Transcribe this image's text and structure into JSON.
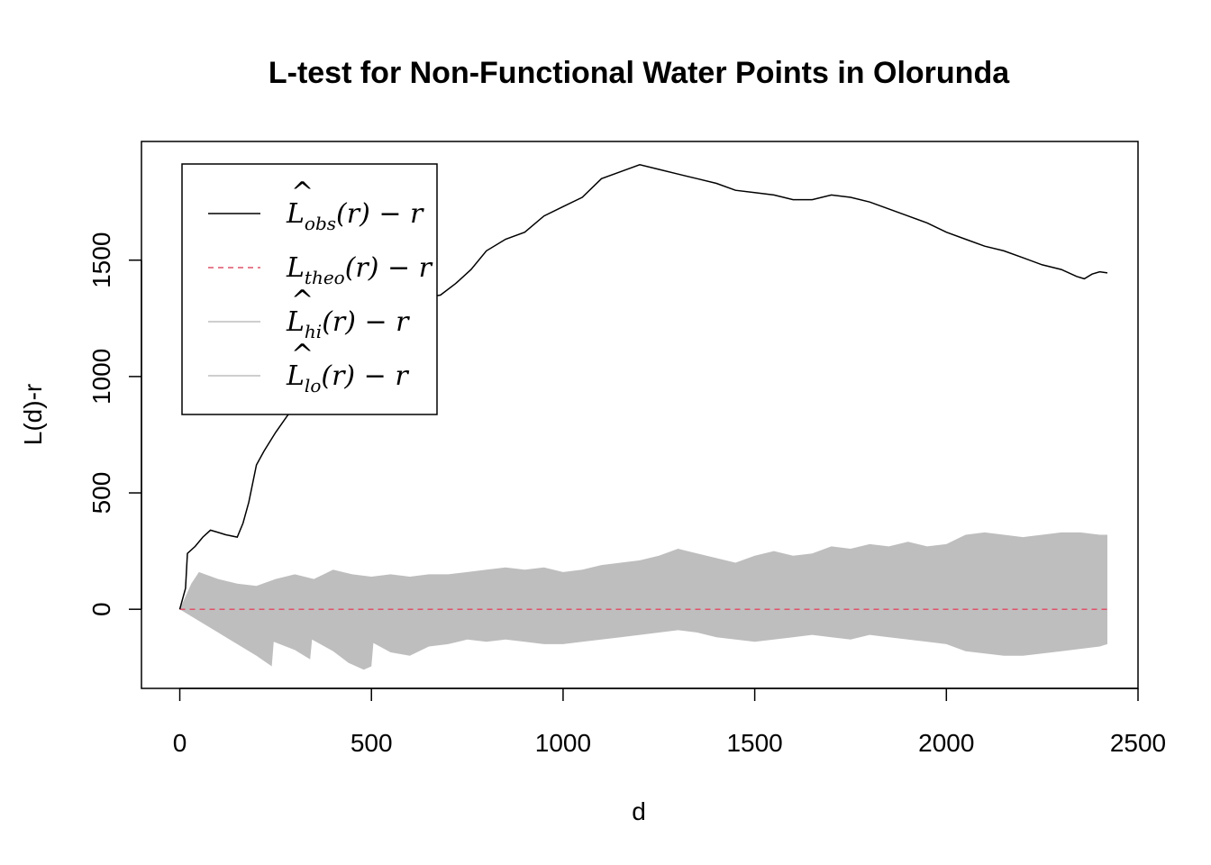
{
  "chart_data": {
    "type": "line",
    "title": "L-test for Non-Functional Water Points in Olorunda",
    "xlabel": "d",
    "ylabel": "L(d)-r",
    "xlim": [
      -100,
      2500
    ],
    "ylim": [
      -340,
      2010
    ],
    "xticks": [
      0,
      500,
      1000,
      1500,
      2000,
      2500
    ],
    "yticks": [
      0,
      500,
      1000,
      1500
    ],
    "grid": false,
    "legend_position": "top-left",
    "legend": [
      {
        "key": "obs",
        "main": "L",
        "hat": true,
        "sub": "obs",
        "tail": "(r) − r",
        "color": "#000000",
        "dash": "solid"
      },
      {
        "key": "theo",
        "main": "L",
        "hat": false,
        "sub": "theo",
        "tail": "(r) − r",
        "color": "#DF536B",
        "dash": "dashed"
      },
      {
        "key": "hi",
        "main": "L",
        "hat": true,
        "sub": "hi",
        "tail": "(r) − r",
        "color": "#BEBEBE",
        "dash": "solid"
      },
      {
        "key": "lo",
        "main": "L",
        "hat": true,
        "sub": "lo",
        "tail": "(r) − r",
        "color": "#BEBEBE",
        "dash": "solid"
      }
    ],
    "series": [
      {
        "name": "obs",
        "color": "#000000",
        "x": [
          0,
          15,
          20,
          40,
          60,
          80,
          100,
          120,
          150,
          165,
          180,
          200,
          220,
          250,
          280,
          300,
          330,
          360,
          390,
          420,
          450,
          480,
          500,
          530,
          560,
          600,
          640,
          680,
          720,
          760,
          800,
          850,
          900,
          950,
          1000,
          1050,
          1100,
          1150,
          1200,
          1250,
          1300,
          1350,
          1400,
          1450,
          1500,
          1550,
          1600,
          1650,
          1700,
          1750,
          1800,
          1850,
          1900,
          1950,
          2000,
          2050,
          2100,
          2150,
          2200,
          2250,
          2300,
          2340,
          2360,
          2380,
          2400,
          2420
        ],
        "y": [
          0,
          90,
          240,
          270,
          310,
          340,
          330,
          320,
          310,
          370,
          460,
          620,
          680,
          760,
          830,
          870,
          930,
          1000,
          1060,
          1100,
          1140,
          1180,
          1220,
          1250,
          1290,
          1320,
          1340,
          1350,
          1400,
          1460,
          1540,
          1590,
          1620,
          1690,
          1730,
          1770,
          1850,
          1880,
          1910,
          1890,
          1870,
          1850,
          1830,
          1800,
          1790,
          1780,
          1760,
          1760,
          1780,
          1770,
          1750,
          1720,
          1690,
          1660,
          1620,
          1590,
          1560,
          1540,
          1510,
          1480,
          1460,
          1430,
          1420,
          1440,
          1450,
          1445
        ]
      },
      {
        "name": "theo",
        "color": "#DF536B",
        "x": [
          0,
          2420
        ],
        "y": [
          0,
          0
        ]
      },
      {
        "name": "hi",
        "color": "#BEBEBE",
        "x": [
          0,
          30,
          50,
          100,
          150,
          200,
          250,
          300,
          350,
          400,
          450,
          500,
          550,
          600,
          650,
          700,
          750,
          800,
          850,
          900,
          950,
          1000,
          1050,
          1100,
          1150,
          1200,
          1250,
          1300,
          1350,
          1400,
          1450,
          1500,
          1550,
          1600,
          1650,
          1700,
          1750,
          1800,
          1850,
          1900,
          1950,
          2000,
          2050,
          2100,
          2150,
          2200,
          2250,
          2300,
          2350,
          2400,
          2420
        ],
        "y": [
          0,
          110,
          160,
          130,
          110,
          100,
          130,
          150,
          130,
          170,
          150,
          140,
          150,
          140,
          150,
          150,
          160,
          170,
          180,
          170,
          180,
          160,
          170,
          190,
          200,
          210,
          230,
          260,
          240,
          220,
          200,
          230,
          250,
          230,
          240,
          270,
          260,
          280,
          270,
          290,
          270,
          280,
          320,
          330,
          320,
          310,
          320,
          330,
          330,
          320,
          320
        ]
      },
      {
        "name": "lo",
        "color": "#BEBEBE",
        "x": [
          0,
          50,
          100,
          150,
          200,
          240,
          245,
          300,
          340,
          345,
          400,
          440,
          480,
          500,
          505,
          550,
          600,
          650,
          700,
          750,
          800,
          850,
          900,
          950,
          1000,
          1050,
          1100,
          1150,
          1200,
          1250,
          1300,
          1350,
          1400,
          1450,
          1500,
          1550,
          1600,
          1650,
          1700,
          1750,
          1800,
          1850,
          1900,
          1950,
          2000,
          2050,
          2100,
          2150,
          2200,
          2250,
          2300,
          2350,
          2400,
          2420
        ],
        "y": [
          0,
          -50,
          -100,
          -150,
          -200,
          -245,
          -140,
          -175,
          -215,
          -130,
          -180,
          -230,
          -260,
          -245,
          -145,
          -185,
          -200,
          -160,
          -150,
          -130,
          -140,
          -130,
          -140,
          -150,
          -150,
          -140,
          -130,
          -120,
          -110,
          -100,
          -90,
          -100,
          -120,
          -130,
          -140,
          -130,
          -120,
          -110,
          -120,
          -130,
          -110,
          -120,
          -130,
          -140,
          -150,
          -180,
          -190,
          -200,
          -200,
          -190,
          -180,
          -170,
          -160,
          -150
        ]
      }
    ]
  }
}
